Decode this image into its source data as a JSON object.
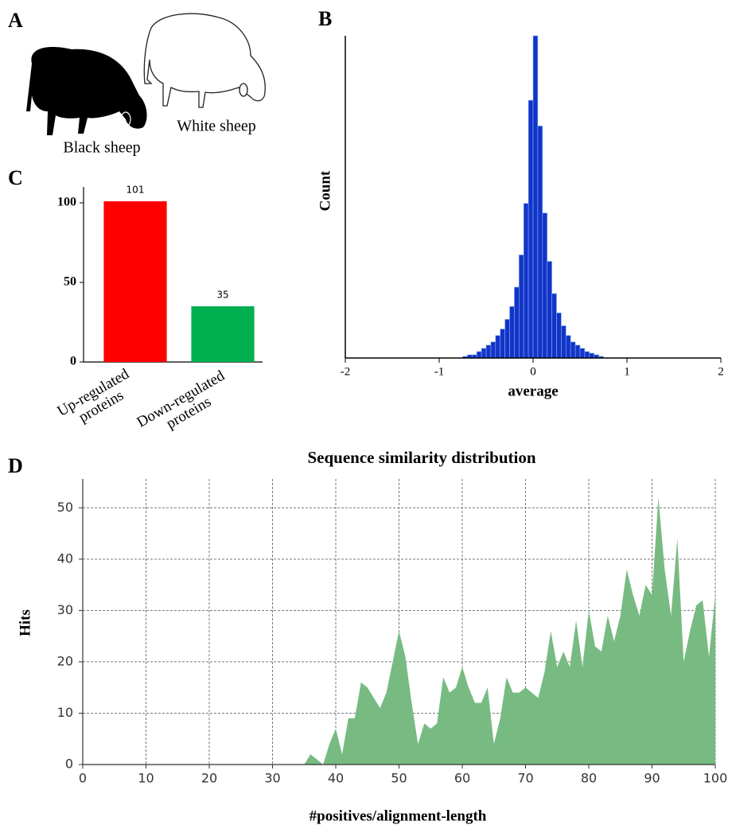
{
  "panel_labels": [
    "A",
    "B",
    "C",
    "D"
  ],
  "illustration": {
    "labels": [
      "Black sheep",
      "White sheep"
    ]
  },
  "chart_data": [
    {
      "type": "bar",
      "categories": [
        "Up-regulated proteins",
        "Down-regulated proteins"
      ],
      "values": [
        101,
        35
      ],
      "colors": [
        "#ff0000",
        "#00b050"
      ],
      "ylim": [
        0,
        110
      ],
      "yticks": [
        0,
        50,
        100
      ],
      "grid": false
    },
    {
      "type": "histogram",
      "x_label": "average",
      "y_label": "Count",
      "bins": [
        -0.75,
        -0.7,
        -0.65,
        -0.6,
        -0.55,
        -0.5,
        -0.45,
        -0.4,
        -0.35,
        -0.3,
        -0.25,
        -0.2,
        -0.15,
        -0.1,
        -0.05,
        0,
        0.05,
        0.1,
        0.15,
        0.2,
        0.25,
        0.3,
        0.35,
        0.4,
        0.45,
        0.5,
        0.55,
        0.6,
        0.65,
        0.7,
        0.75
      ],
      "values": [
        0.5,
        1,
        1,
        2,
        3,
        4,
        5,
        7,
        9,
        12,
        16,
        22,
        32,
        48,
        80,
        100,
        72,
        45,
        30,
        20,
        14,
        10,
        7,
        5,
        4,
        3,
        2,
        1.5,
        1,
        0.5
      ],
      "color": "#1434c8",
      "xlim": [
        -2,
        2
      ],
      "xticks": [
        -2,
        -1,
        0,
        1,
        2
      ],
      "ylim": [
        0,
        100
      ],
      "grid": false
    },
    {
      "type": "area",
      "title": "Sequence similarity distribution",
      "x_label": "#positives/alignment-length",
      "y_label": "Hits",
      "x": [
        35,
        36,
        37,
        38,
        39,
        40,
        41,
        42,
        43,
        44,
        45,
        46,
        47,
        48,
        49,
        50,
        51,
        52,
        53,
        54,
        55,
        56,
        57,
        58,
        59,
        60,
        61,
        62,
        63,
        64,
        65,
        66,
        67,
        68,
        69,
        70,
        71,
        72,
        73,
        74,
        75,
        76,
        77,
        78,
        79,
        80,
        81,
        82,
        83,
        84,
        85,
        86,
        87,
        88,
        89,
        90,
        91,
        92,
        93,
        94,
        95,
        96,
        97,
        98,
        99,
        100
      ],
      "values": [
        0,
        2,
        1,
        0,
        4,
        7,
        2,
        9,
        9,
        16,
        15,
        13,
        11,
        14,
        20,
        26,
        21,
        12,
        4,
        8,
        7,
        8,
        17,
        14,
        15,
        19,
        15,
        12,
        12,
        15,
        4,
        9,
        17,
        14,
        14,
        15,
        14,
        13,
        18,
        26,
        19,
        22,
        19,
        28,
        19,
        30,
        23,
        22,
        29,
        24,
        29,
        38,
        33,
        29,
        35,
        33,
        52,
        38,
        29,
        44,
        20,
        26,
        31,
        32,
        21,
        33
      ],
      "color": "#77bb82",
      "xlim": [
        0,
        100
      ],
      "xticks": [
        0,
        10,
        20,
        30,
        40,
        50,
        60,
        70,
        80,
        90,
        100
      ],
      "ylim": [
        0,
        55
      ],
      "yticks": [
        0,
        10,
        20,
        30,
        40,
        50
      ],
      "grid": true
    }
  ]
}
